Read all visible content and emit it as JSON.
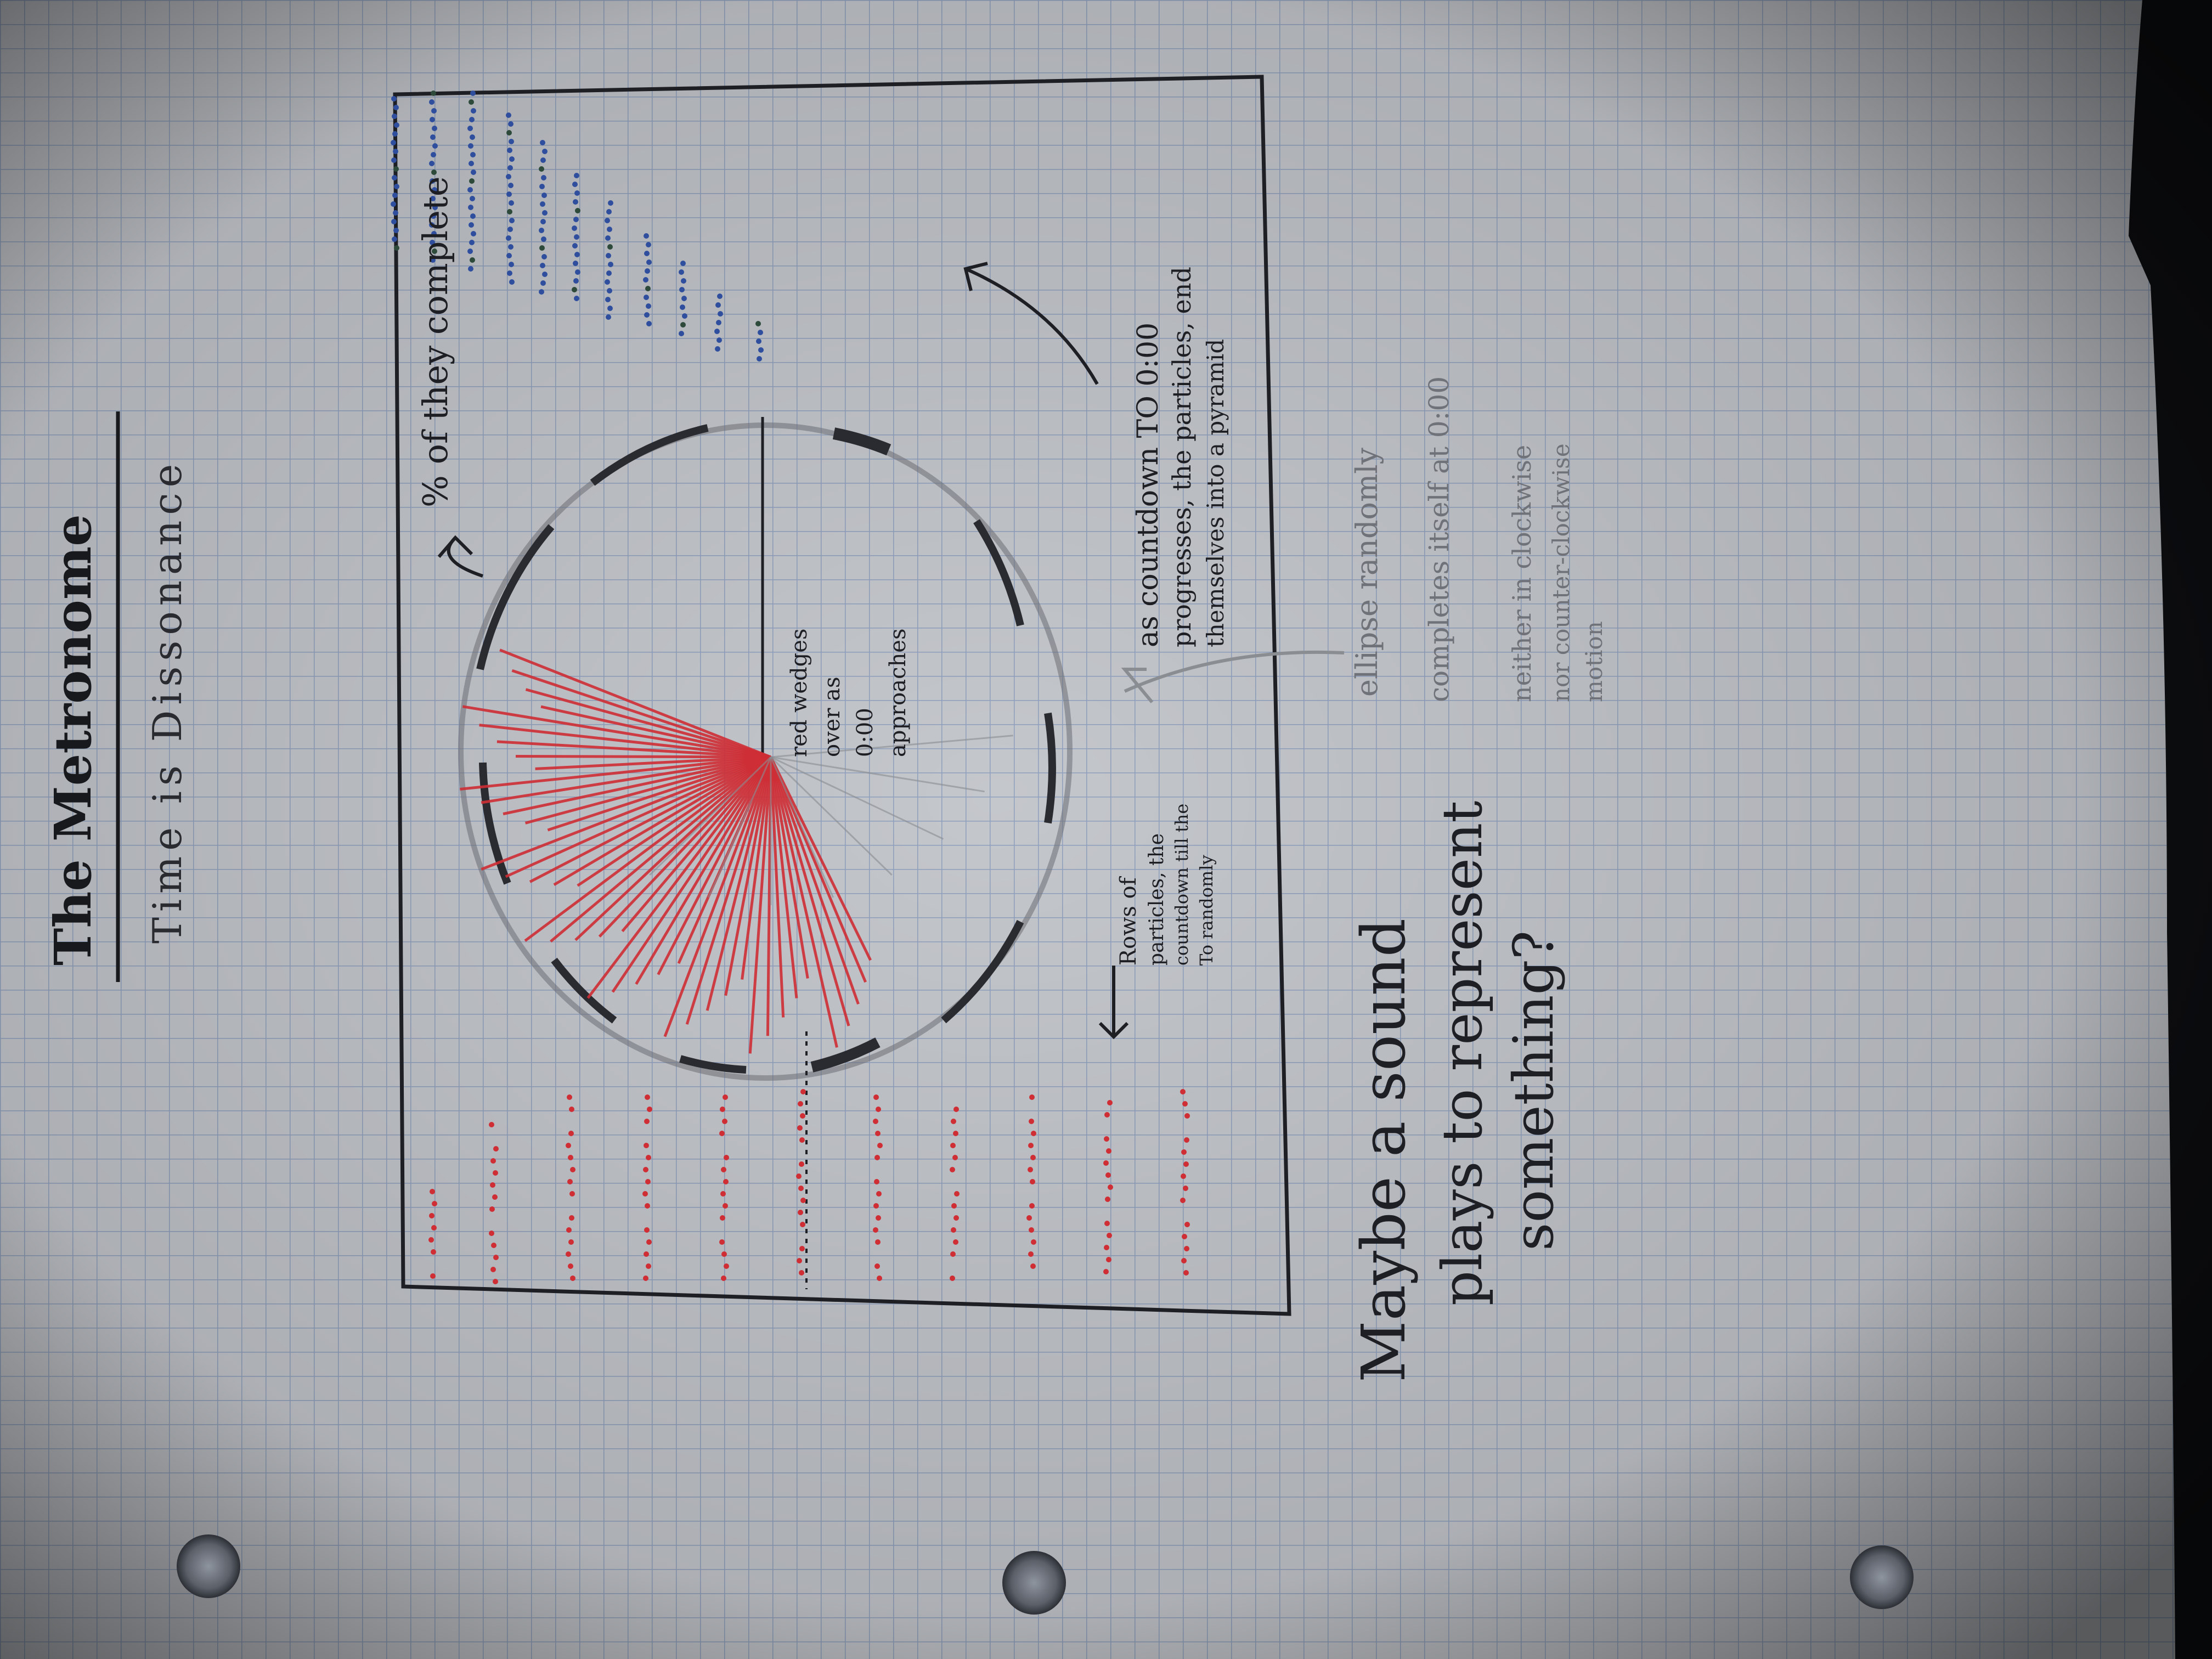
{
  "title": "The Metronome",
  "subtitle": "Time is Dissonance",
  "notes": {
    "pct_label": "% of they complete",
    "red_label": [
      "red wedges",
      "over as",
      "0:00",
      "approaches"
    ],
    "countdown": [
      "as countdown TO 0:00",
      "progresses, the particles, end",
      "themselves into a pyramid"
    ],
    "rows_label": [
      "Rows of",
      "particles, the",
      "countdown till the",
      "To randomly"
    ],
    "ellipse": [
      "ellipse randomly",
      "completes itself at 0:00"
    ],
    "motion": [
      "neither in clockwise",
      "nor counter-clockwise",
      "motion"
    ],
    "sound": [
      "Maybe a sound",
      "plays to represent",
      "something?"
    ]
  },
  "colors": {
    "paper": "#c4c7cc",
    "grid": "#7d93b8",
    "ink": "#1e1f24",
    "red": "#cf2e35",
    "blue": "#2f4f9e",
    "background": "#0e0f12"
  }
}
